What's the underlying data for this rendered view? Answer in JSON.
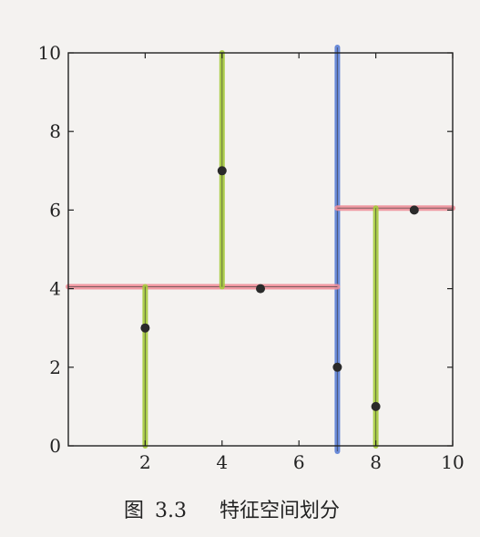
{
  "figure": {
    "caption_prefix": "图",
    "caption_number": "3.3",
    "caption_title": "特征空间划分"
  },
  "chart_data": {
    "type": "scatter",
    "title": "",
    "xlabel": "",
    "ylabel": "",
    "xlim": [
      0,
      10
    ],
    "ylim": [
      0,
      10
    ],
    "x_ticks": [
      2,
      4,
      6,
      8,
      10
    ],
    "y_ticks": [
      0,
      2,
      4,
      6,
      8,
      10
    ],
    "grid": false,
    "points": [
      {
        "x": 2,
        "y": 3
      },
      {
        "x": 4,
        "y": 7
      },
      {
        "x": 5,
        "y": 4
      },
      {
        "x": 7,
        "y": 2
      },
      {
        "x": 8,
        "y": 1
      },
      {
        "x": 9,
        "y": 6
      }
    ],
    "splits": [
      {
        "orientation": "vertical",
        "x": 7,
        "y_range": [
          0,
          10
        ],
        "color": "#5b7fd6"
      },
      {
        "orientation": "horizontal",
        "y": 4.05,
        "x_range": [
          0,
          7
        ],
        "color": "#f0909a"
      },
      {
        "orientation": "horizontal",
        "y": 6.05,
        "x_range": [
          7,
          10
        ],
        "color": "#f0909a"
      },
      {
        "orientation": "vertical",
        "x": 2,
        "y_range": [
          0,
          4.05
        ],
        "color": "#a6cc3c"
      },
      {
        "orientation": "vertical",
        "x": 4,
        "y_range": [
          4.05,
          10
        ],
        "color": "#a6cc3c"
      },
      {
        "orientation": "vertical",
        "x": 8,
        "y_range": [
          0,
          6.05
        ],
        "color": "#a6cc3c"
      }
    ],
    "point_color": "#2a2a2a",
    "axis_color": "#222222"
  }
}
